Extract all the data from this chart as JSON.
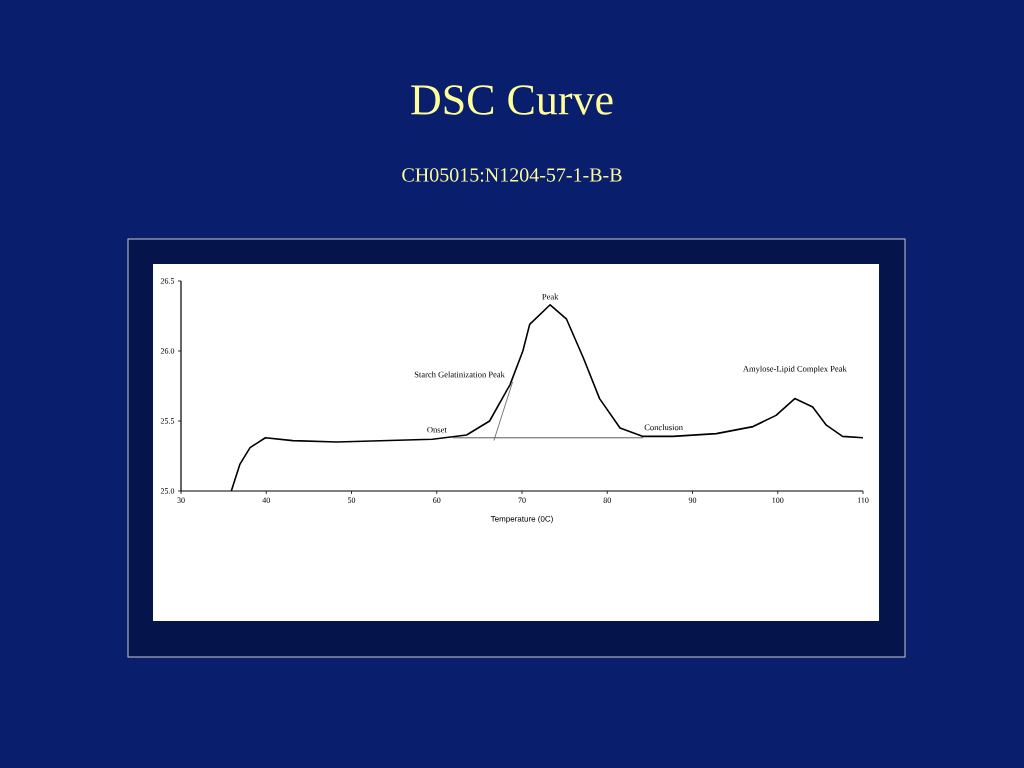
{
  "chart_data": {
    "type": "line",
    "title": "DSC Curve",
    "subtitle": "CH05015:N1204-57-1-B-B",
    "xlabel": "Temperature (0C)",
    "xlim": [
      30,
      110
    ],
    "ylim": [
      25.0,
      26.5
    ],
    "xticks": [
      30,
      40,
      50,
      60,
      70,
      80,
      90,
      100,
      110
    ],
    "yticks": [
      {
        "value": 25.0,
        "label": "25.0"
      },
      {
        "value": 25.5,
        "label": "25.5"
      },
      {
        "value": 26.0,
        "label": "26.0"
      },
      {
        "value": 26.5,
        "label": "26.5"
      }
    ],
    "series": [
      {
        "color": "#000000",
        "x": [
          35.9,
          36.9,
          38.1,
          39.9,
          43.1,
          48.3,
          59.5,
          63.5,
          66.2,
          68.6,
          70.1,
          70.9,
          73.3,
          75.2,
          77.2,
          79.1,
          81.5,
          84.2,
          87.7,
          92.8,
          97.1,
          99.8,
          102.0,
          104.1,
          105.7,
          107.6,
          110.0
        ],
        "values": [
          25.0,
          25.19,
          25.31,
          25.38,
          25.36,
          25.35,
          25.37,
          25.4,
          25.5,
          25.76,
          26.0,
          26.19,
          26.33,
          26.23,
          25.95,
          25.66,
          25.45,
          25.39,
          25.39,
          25.41,
          25.46,
          25.54,
          25.66,
          25.6,
          25.47,
          25.39,
          25.38
        ]
      },
      {
        "color": "#333333",
        "x": [
          61.9,
          84.2
        ],
        "values": [
          25.38,
          25.38
        ]
      },
      {
        "color": "#555555",
        "x": [
          66.7,
          68.9
        ],
        "values": [
          25.36,
          25.78
        ]
      }
    ],
    "annotations": [
      {
        "text": "Peak",
        "x": 73.3,
        "y": 26.33
      },
      {
        "text": "Starch Gelatinization Peak",
        "x": 68.6,
        "y": 25.76
      },
      {
        "text": "Onset",
        "x": 61.9,
        "y": 25.38
      },
      {
        "text": "Conclusion",
        "x": 84.2,
        "y": 25.39
      },
      {
        "text": "Amylose-Lipid Complex Peak",
        "x": 102.0,
        "y": 25.66
      }
    ]
  }
}
